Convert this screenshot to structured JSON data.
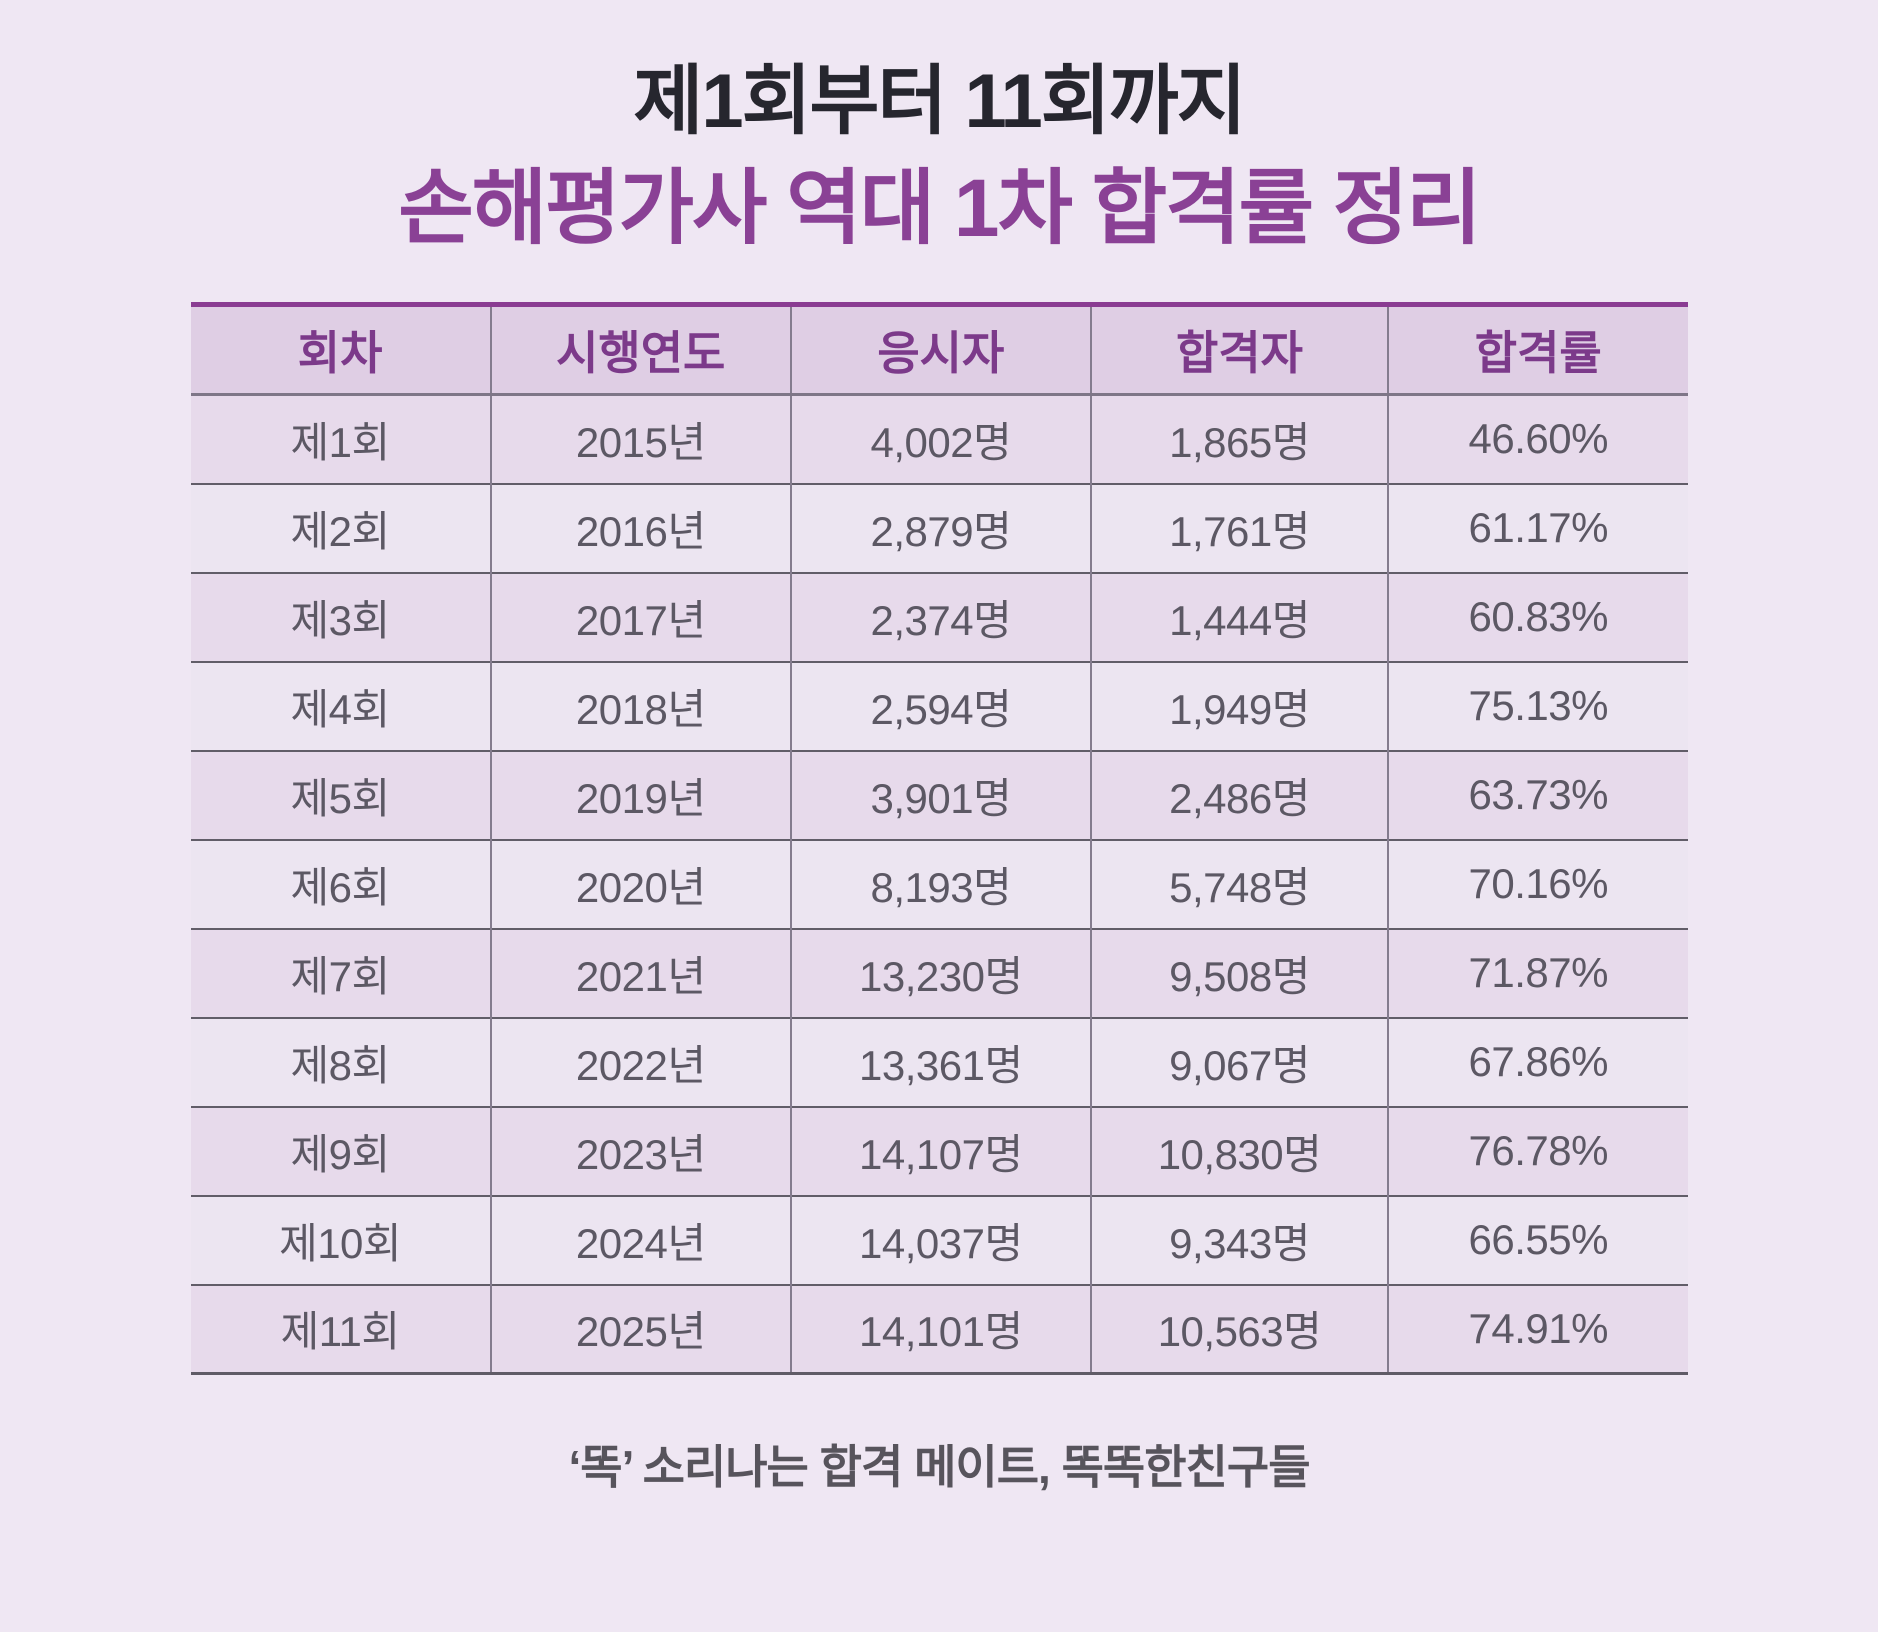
{
  "header": {
    "title": "제1회부터 11회까지",
    "subtitle": "손해평가사 역대 1차 합격률 정리"
  },
  "chart_data": {
    "type": "table",
    "title": "제1회부터 11회까지 손해평가사 역대 1차 합격률 정리",
    "columns": [
      "회차",
      "시행연도",
      "응시자",
      "합격자",
      "합격률"
    ],
    "rows": [
      [
        "제1회",
        "2015년",
        "4,002명",
        "1,865명",
        "46.60%"
      ],
      [
        "제2회",
        "2016년",
        "2,879명",
        "1,761명",
        "61.17%"
      ],
      [
        "제3회",
        "2017년",
        "2,374명",
        "1,444명",
        "60.83%"
      ],
      [
        "제4회",
        "2018년",
        "2,594명",
        "1,949명",
        "75.13%"
      ],
      [
        "제5회",
        "2019년",
        "3,901명",
        "2,486명",
        "63.73%"
      ],
      [
        "제6회",
        "2020년",
        "8,193명",
        "5,748명",
        "70.16%"
      ],
      [
        "제7회",
        "2021년",
        "13,230명",
        "9,508명",
        "71.87%"
      ],
      [
        "제8회",
        "2022년",
        "13,361명",
        "9,067명",
        "67.86%"
      ],
      [
        "제9회",
        "2023년",
        "14,107명",
        "10,830명",
        "76.78%"
      ],
      [
        "제10회",
        "2024년",
        "14,037명",
        "9,343명",
        "66.55%"
      ],
      [
        "제11회",
        "2025년",
        "14,101명",
        "10,563명",
        "74.91%"
      ]
    ],
    "pass_rate_values_percent": [
      46.6,
      61.17,
      60.83,
      75.13,
      63.73,
      70.16,
      71.87,
      67.86,
      76.78,
      66.55,
      74.91
    ],
    "applicant_counts": [
      4002,
      2879,
      2374,
      2594,
      3901,
      8193,
      13230,
      13361,
      14107,
      14037,
      14101
    ],
    "passer_counts": [
      1865,
      1761,
      1444,
      1949,
      2486,
      5748,
      9508,
      9067,
      10830,
      9343,
      10563
    ],
    "years": [
      2015,
      2016,
      2017,
      2018,
      2019,
      2020,
      2021,
      2022,
      2023,
      2024,
      2025
    ]
  },
  "footer": {
    "tagline": "‘똑’ 소리나는 합격 메이트, 똑똑한친구들"
  },
  "colors": {
    "page_bg": "#EFE7F3",
    "title_text": "#26262E",
    "subtitle_text": "#8A4195",
    "table_top_border": "#8A3C92",
    "header_bg": "#DFCEE4",
    "header_text": "#7C3A8A",
    "row_odd_bg": "#E7DAEB",
    "row_even_bg": "#ECE5F1",
    "cell_text": "#5C5864",
    "row_divider": "#615D68",
    "column_divider": "#847C8E",
    "footer_text": "#57545C"
  }
}
